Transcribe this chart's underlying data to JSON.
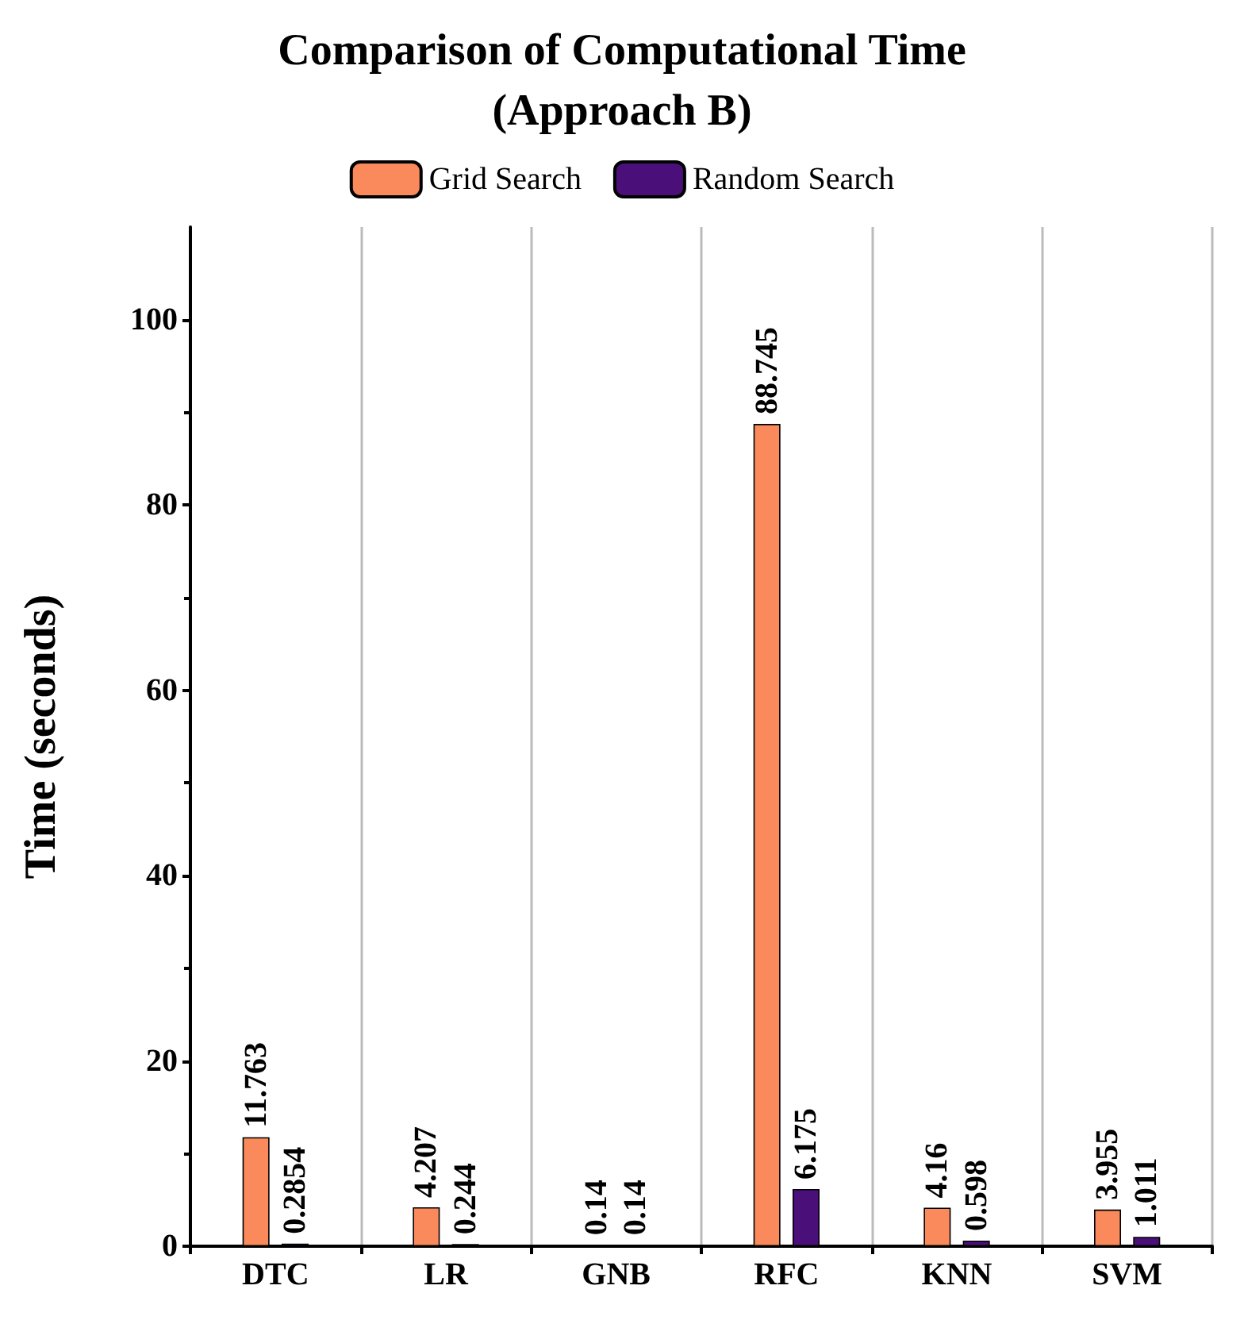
{
  "chart_data": {
    "type": "bar",
    "title": "Comparison of Computational Time\n(Approach B)",
    "ylabel": "Time (seconds)",
    "categories": [
      "DTC",
      "LR",
      "GNB",
      "RFC",
      "KNN",
      "SVM"
    ],
    "series": [
      {
        "name": "Grid Search",
        "color": "#fa8a5c",
        "values": [
          11.763,
          4.207,
          0.14,
          88.745,
          4.16,
          3.955
        ]
      },
      {
        "name": "Random Search",
        "color": "#4b0f7a",
        "values": [
          0.2854,
          0.244,
          0.14,
          6.175,
          0.598,
          1.011
        ]
      }
    ],
    "ylim": [
      0,
      110
    ],
    "yticks": [
      0,
      20,
      40,
      60,
      80,
      100
    ],
    "grid": "x",
    "legend": "top",
    "data_labels": true
  }
}
